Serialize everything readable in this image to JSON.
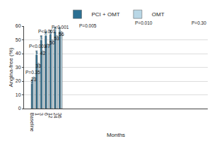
{
  "chart_data": {
    "type": "bar",
    "x_label": "Months",
    "y_label": "Angina-free (%)",
    "categories": [
      "Baseline",
      "1",
      "3",
      "6",
      "12",
      "24",
      "36"
    ],
    "series": [
      {
        "name": "PCI + OMT",
        "color": "#2b6f92",
        "values": [
          21,
          42,
          53,
          56,
          57,
          59,
          59
        ]
      },
      {
        "name": "OMT",
        "color": "#b9d7e6",
        "values": [
          23,
          33,
          42,
          47,
          50,
          53,
          56
        ]
      }
    ],
    "annotations": [
      "P=0.35",
      "P<0.001",
      "P<0.001",
      "P<0.001",
      "P=0.005",
      "P=0.010",
      "P=0.30"
    ],
    "ylim": [
      0,
      60
    ],
    "yticks": [
      0,
      10,
      20,
      30,
      40,
      50,
      60
    ],
    "grid": true,
    "legend": "top",
    "data_labels": true
  }
}
